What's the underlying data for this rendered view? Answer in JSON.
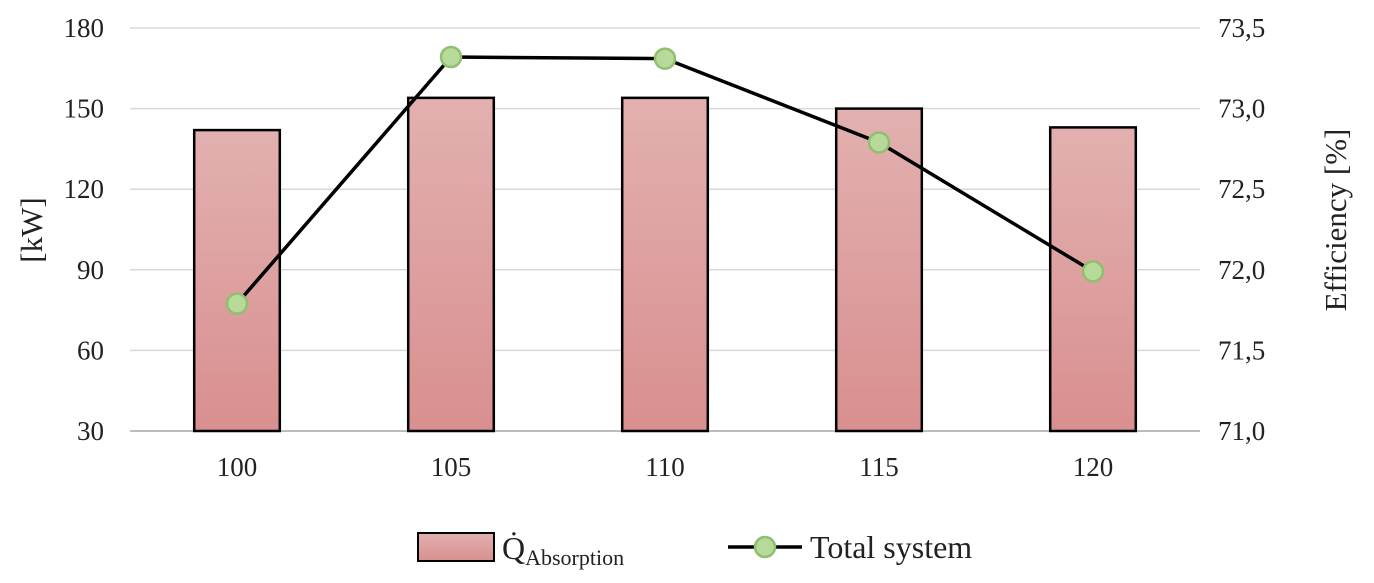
{
  "chart_data": {
    "type": "bar",
    "title": "",
    "categories": [
      "100",
      "105",
      "110",
      "115",
      "120"
    ],
    "xlabel": "",
    "ylabel": "[kW]",
    "y2label": "Efficiency [%]",
    "ylim": [
      30,
      180
    ],
    "y2lim": [
      71.0,
      73.5
    ],
    "yticks": [
      "30",
      "60",
      "90",
      "120",
      "150",
      "180"
    ],
    "y2ticks": [
      "71,0",
      "71,5",
      "72,0",
      "72,5",
      "73,0",
      "73,5"
    ],
    "grid": true,
    "legend_position": "bottom",
    "series": [
      {
        "name": "Q̇Absorption",
        "legend_main": "Q̇",
        "legend_sub": "Absorption",
        "type": "bar",
        "axis": "left",
        "values": [
          142,
          154,
          154,
          150,
          143
        ],
        "color": "#d98f8f",
        "color_top": "#e2b0b0",
        "edge_color": "#000000"
      },
      {
        "name": "Total system",
        "type": "line",
        "axis": "right",
        "values": [
          71.79,
          73.32,
          73.31,
          72.79,
          71.99
        ],
        "color": "#000000",
        "marker_fill": "#b7d99a",
        "marker_edge": "#8fbf6f"
      }
    ]
  }
}
